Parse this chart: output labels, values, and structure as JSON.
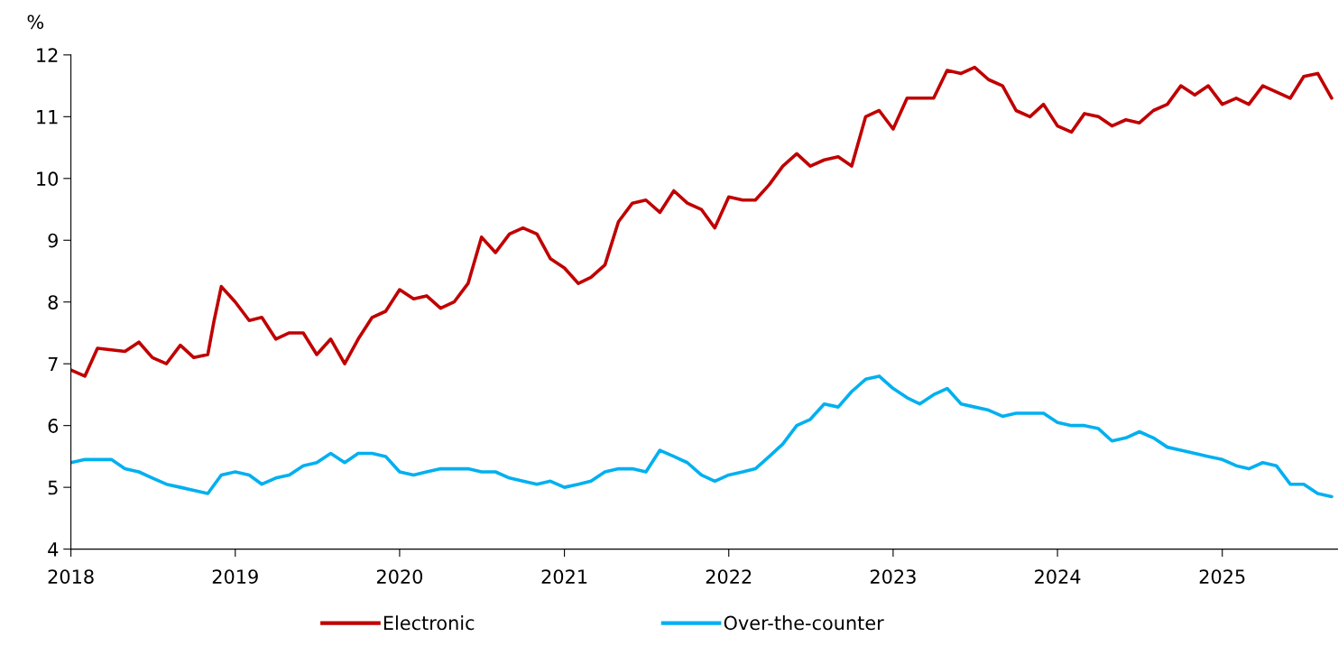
{
  "chart_data": {
    "type": "line",
    "ylabel": "%",
    "xlim": [
      "2018-01-01",
      "2025-09-15"
    ],
    "xticks": [
      "2018",
      "2019",
      "2020",
      "2021",
      "2022",
      "2023",
      "2024",
      "2025"
    ],
    "ylim": [
      4,
      12
    ],
    "yticks": [
      4,
      5,
      6,
      7,
      8,
      9,
      10,
      11,
      12
    ],
    "grid": false,
    "legend": "bottom",
    "marker": "none",
    "line_style": "solid",
    "series": [
      {
        "name": "Electronic",
        "color": "#c00000",
        "x": [
          "2018-01",
          "2018-02",
          "2018-03",
          "2018-05",
          "2018-06",
          "2018-07",
          "2018-08",
          "2018-09",
          "2018-10",
          "2018-11",
          "2018-11-15",
          "2018-12",
          "2019-01",
          "2019-02",
          "2019-03",
          "2019-04",
          "2019-05",
          "2019-06",
          "2019-07",
          "2019-08",
          "2019-09",
          "2019-10",
          "2019-11",
          "2019-12",
          "2020-01",
          "2020-02",
          "2020-03",
          "2020-04",
          "2020-05",
          "2020-06",
          "2020-07",
          "2020-08",
          "2020-09",
          "2020-10",
          "2020-11",
          "2020-12",
          "2021-01",
          "2021-02",
          "2021-03",
          "2021-04",
          "2021-05",
          "2021-06",
          "2021-07",
          "2021-08",
          "2021-09",
          "2021-10",
          "2021-11",
          "2021-12",
          "2022-01",
          "2022-02",
          "2022-03",
          "2022-04",
          "2022-05",
          "2022-06",
          "2022-07",
          "2022-08",
          "2022-09",
          "2022-10",
          "2022-11",
          "2022-12",
          "2023-01",
          "2023-02",
          "2023-03",
          "2023-04",
          "2023-05",
          "2023-06",
          "2023-07",
          "2023-08",
          "2023-09",
          "2023-10",
          "2023-11",
          "2023-12",
          "2024-01",
          "2024-02",
          "2024-03",
          "2024-04",
          "2024-05",
          "2024-06",
          "2024-07",
          "2024-08",
          "2024-09",
          "2024-10",
          "2024-11",
          "2024-12",
          "2025-01",
          "2025-02",
          "2025-03",
          "2025-04",
          "2025-05",
          "2025-06",
          "2025-07",
          "2025-08",
          "2025-09"
        ],
        "values": [
          6.9,
          6.8,
          7.25,
          7.2,
          7.35,
          7.1,
          7.0,
          7.3,
          7.1,
          7.15,
          7.7,
          8.25,
          8.0,
          7.7,
          7.75,
          7.4,
          7.5,
          7.5,
          7.15,
          7.4,
          7.0,
          7.4,
          7.75,
          7.85,
          8.2,
          8.05,
          8.1,
          7.9,
          8.0,
          8.3,
          9.05,
          8.8,
          9.1,
          9.2,
          9.1,
          8.7,
          8.55,
          8.3,
          8.4,
          8.6,
          9.3,
          9.6,
          9.65,
          9.45,
          9.8,
          9.6,
          9.5,
          9.2,
          9.7,
          9.65,
          9.65,
          9.9,
          10.2,
          10.4,
          10.2,
          10.3,
          10.35,
          10.2,
          11.0,
          11.1,
          10.8,
          11.3,
          11.3,
          11.3,
          11.75,
          11.7,
          11.8,
          11.6,
          11.5,
          11.1,
          11.0,
          11.2,
          10.85,
          10.75,
          11.05,
          11.0,
          10.85,
          10.95,
          10.9,
          11.1,
          11.2,
          11.5,
          11.35,
          11.5,
          11.2,
          11.3,
          11.2,
          11.5,
          11.4,
          11.3,
          11.65,
          11.7,
          11.3
        ]
      },
      {
        "name": "Over-the-counter",
        "color": "#00b0f0",
        "x": [
          "2018-01",
          "2018-02",
          "2018-04",
          "2018-05",
          "2018-06",
          "2018-07",
          "2018-08",
          "2018-09",
          "2018-10",
          "2018-11",
          "2018-12",
          "2019-01",
          "2019-02",
          "2019-03",
          "2019-04",
          "2019-05",
          "2019-06",
          "2019-07",
          "2019-08",
          "2019-09",
          "2019-10",
          "2019-11",
          "2019-12",
          "2020-01",
          "2020-02",
          "2020-03",
          "2020-04",
          "2020-05",
          "2020-06",
          "2020-07",
          "2020-08",
          "2020-09",
          "2020-10",
          "2020-11",
          "2020-12",
          "2021-01",
          "2021-02",
          "2021-03",
          "2021-04",
          "2021-05",
          "2021-06",
          "2021-07",
          "2021-08",
          "2021-09",
          "2021-10",
          "2021-11",
          "2021-12",
          "2022-01",
          "2022-02",
          "2022-03",
          "2022-04",
          "2022-05",
          "2022-06",
          "2022-07",
          "2022-08",
          "2022-09",
          "2022-10",
          "2022-11",
          "2022-12",
          "2023-01",
          "2023-02",
          "2023-03",
          "2023-04",
          "2023-05",
          "2023-06",
          "2023-07",
          "2023-08",
          "2023-09",
          "2023-10",
          "2023-11",
          "2023-12",
          "2024-01",
          "2024-02",
          "2024-03",
          "2024-04",
          "2024-05",
          "2024-06",
          "2024-07",
          "2024-08",
          "2024-09",
          "2024-10",
          "2024-11",
          "2024-12",
          "2025-01",
          "2025-02",
          "2025-03",
          "2025-04",
          "2025-05",
          "2025-06",
          "2025-07",
          "2025-08",
          "2025-09"
        ],
        "values": [
          5.4,
          5.45,
          5.45,
          5.3,
          5.25,
          5.15,
          5.05,
          5.0,
          4.95,
          4.9,
          5.2,
          5.25,
          5.2,
          5.05,
          5.15,
          5.2,
          5.35,
          5.4,
          5.55,
          5.4,
          5.55,
          5.55,
          5.5,
          5.25,
          5.2,
          5.25,
          5.3,
          5.3,
          5.3,
          5.25,
          5.25,
          5.15,
          5.1,
          5.05,
          5.1,
          5.0,
          5.05,
          5.1,
          5.25,
          5.3,
          5.3,
          5.25,
          5.6,
          5.5,
          5.4,
          5.2,
          5.1,
          5.2,
          5.25,
          5.3,
          5.5,
          5.7,
          6.0,
          6.1,
          6.35,
          6.3,
          6.55,
          6.75,
          6.8,
          6.6,
          6.45,
          6.35,
          6.5,
          6.6,
          6.35,
          6.3,
          6.25,
          6.15,
          6.2,
          6.2,
          6.2,
          6.05,
          6.0,
          6.0,
          5.95,
          5.75,
          5.8,
          5.9,
          5.8,
          5.65,
          5.6,
          5.55,
          5.5,
          5.45,
          5.35,
          5.3,
          5.4,
          5.35,
          5.05,
          5.05,
          4.9,
          4.85
        ]
      }
    ]
  }
}
